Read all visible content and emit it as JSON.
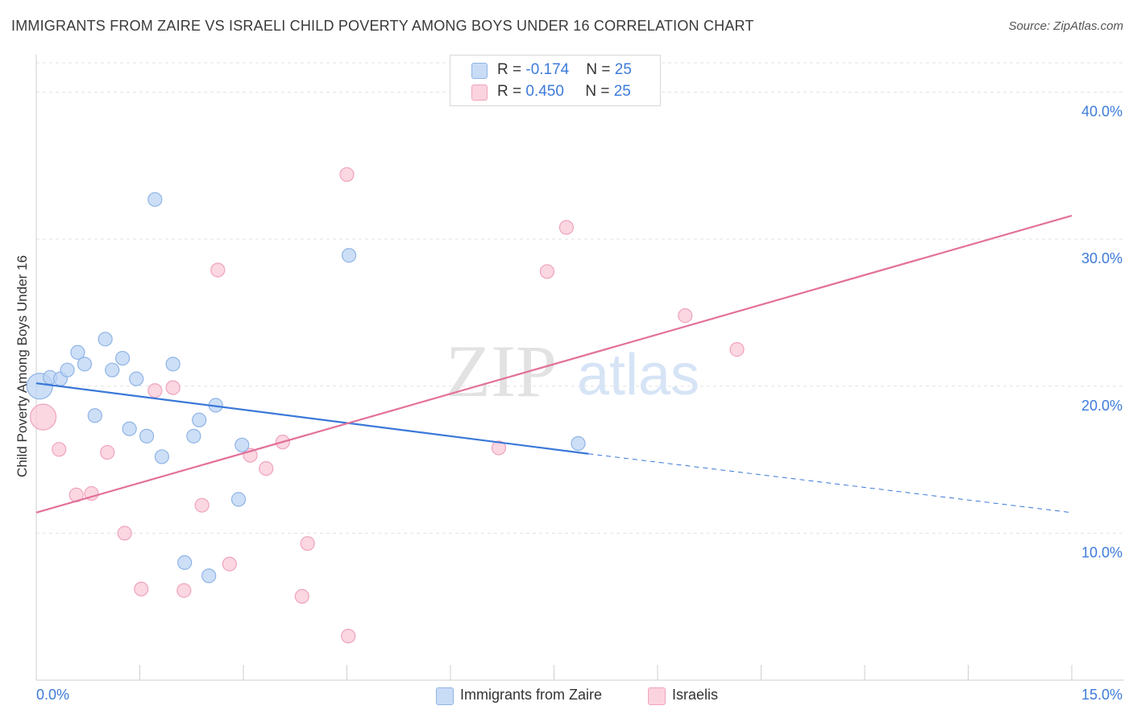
{
  "header": {
    "title": "IMMIGRANTS FROM ZAIRE VS ISRAELI CHILD POVERTY AMONG BOYS UNDER 16 CORRELATION CHART",
    "source": "Source: ZipAtlas.com"
  },
  "watermark": {
    "zip": "ZIP",
    "atlas": "atlas"
  },
  "legend_top": {
    "rows": [
      {
        "r_label": "R = ",
        "r_value": "-0.174",
        "n_label": "N = ",
        "n_value": "25",
        "color": "#a9c8f2"
      },
      {
        "r_label": "R = ",
        "r_value": "0.450",
        "n_label": "N = ",
        "n_value": "25",
        "color": "#f6b4c8"
      }
    ]
  },
  "legend_bottom": {
    "items": [
      {
        "label": "Immigrants from Zaire",
        "color": "#a9c8f2"
      },
      {
        "label": "Israelis",
        "color": "#f6b4c8"
      }
    ]
  },
  "chart_data": {
    "type": "scatter",
    "title": "IMMIGRANTS FROM ZAIRE VS ISRAELI CHILD POVERTY AMONG BOYS UNDER 16 CORRELATION CHART",
    "xlabel": "",
    "ylabel": "Child Poverty Among Boys Under 16",
    "xlim": [
      0,
      15
    ],
    "ylim": [
      0,
      42
    ],
    "x_tick_labels": [
      "0.0%",
      "15.0%"
    ],
    "y_ticks": [
      10,
      20,
      30,
      40
    ],
    "y_tick_labels": [
      "10.0%",
      "20.0%",
      "30.0%",
      "40.0%"
    ],
    "grid": true,
    "legend_position": "top-center",
    "colors": {
      "blue_fill": "#bcd4f4",
      "blue_stroke": "#8fb4e6",
      "blue_line": "#3a78d8",
      "pink_fill": "#f9cad8",
      "pink_stroke": "#f0a3bb",
      "pink_line": "#e3709a",
      "axis_text": "#3d7bd9"
    },
    "series": [
      {
        "name": "Immigrants from Zaire",
        "points": [
          {
            "x": 0.05,
            "y": 20.0,
            "big": true
          },
          {
            "x": 0.2,
            "y": 20.6
          },
          {
            "x": 0.35,
            "y": 20.5
          },
          {
            "x": 0.45,
            "y": 21.1
          },
          {
            "x": 0.6,
            "y": 22.3
          },
          {
            "x": 0.7,
            "y": 21.5
          },
          {
            "x": 0.85,
            "y": 18.0
          },
          {
            "x": 1.0,
            "y": 23.2
          },
          {
            "x": 1.1,
            "y": 21.1
          },
          {
            "x": 1.25,
            "y": 21.9
          },
          {
            "x": 1.35,
            "y": 17.1
          },
          {
            "x": 1.45,
            "y": 20.5
          },
          {
            "x": 1.6,
            "y": 16.6
          },
          {
            "x": 1.72,
            "y": 32.7
          },
          {
            "x": 1.82,
            "y": 15.2
          },
          {
            "x": 1.98,
            "y": 21.5
          },
          {
            "x": 2.15,
            "y": 8.0
          },
          {
            "x": 2.28,
            "y": 16.6
          },
          {
            "x": 2.36,
            "y": 17.7
          },
          {
            "x": 2.5,
            "y": 7.1
          },
          {
            "x": 2.6,
            "y": 18.7
          },
          {
            "x": 2.93,
            "y": 12.3
          },
          {
            "x": 2.98,
            "y": 16.0
          },
          {
            "x": 4.53,
            "y": 28.9
          },
          {
            "x": 7.85,
            "y": 16.1
          }
        ],
        "trend": {
          "x1": 0.0,
          "y1": 20.2,
          "x2": 8.0,
          "y2": 15.4,
          "dash_to_x": 15.0,
          "dash_to_y": 11.4
        }
      },
      {
        "name": "Israelis",
        "points": [
          {
            "x": 0.1,
            "y": 17.9,
            "big": true
          },
          {
            "x": 0.33,
            "y": 15.7
          },
          {
            "x": 0.58,
            "y": 12.6
          },
          {
            "x": 0.8,
            "y": 12.7
          },
          {
            "x": 1.03,
            "y": 15.5
          },
          {
            "x": 1.28,
            "y": 10.0
          },
          {
            "x": 1.52,
            "y": 6.2
          },
          {
            "x": 1.72,
            "y": 19.7
          },
          {
            "x": 1.98,
            "y": 19.9
          },
          {
            "x": 2.14,
            "y": 6.1
          },
          {
            "x": 2.4,
            "y": 11.9
          },
          {
            "x": 2.63,
            "y": 27.9
          },
          {
            "x": 2.8,
            "y": 7.9
          },
          {
            "x": 3.1,
            "y": 15.3
          },
          {
            "x": 3.33,
            "y": 14.4
          },
          {
            "x": 3.57,
            "y": 16.2
          },
          {
            "x": 3.85,
            "y": 5.7
          },
          {
            "x": 3.93,
            "y": 9.3
          },
          {
            "x": 4.5,
            "y": 34.4
          },
          {
            "x": 4.52,
            "y": 3.0
          },
          {
            "x": 6.7,
            "y": 15.8
          },
          {
            "x": 7.4,
            "y": 27.8
          },
          {
            "x": 7.68,
            "y": 30.8
          },
          {
            "x": 9.4,
            "y": 24.8
          },
          {
            "x": 10.15,
            "y": 22.5
          }
        ],
        "trend": {
          "x1": 0.0,
          "y1": 11.4,
          "x2": 15.0,
          "y2": 31.6
        }
      }
    ]
  }
}
